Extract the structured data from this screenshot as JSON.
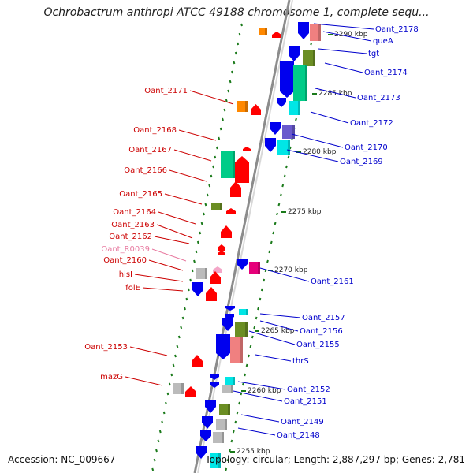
{
  "header": {
    "title": "Ochrobactrum anthropi ATCC 49188 chromosome 1, complete sequ..."
  },
  "footer": {
    "accession": "Accession: NC_009667",
    "topology": "Topology: circular; Length: 2,887,297 bp; Genes: 2,781"
  },
  "colors": {
    "backbone": "#8c8c8c",
    "tick": "#1a7a1a",
    "forward_label": "#cc0000",
    "reverse_label": "#0000cc",
    "rna_label": "#e87aa0",
    "gene_red": "#ff0000",
    "gene_blue": "#0000ee",
    "gene_orange": "#ff8800",
    "gene_green": "#00cc88",
    "gene_cyan": "#00e6e6",
    "gene_pink": "#f08080",
    "gene_olive": "#6b8e23",
    "gene_grey": "#bbbbbb",
    "gene_magenta": "#e6007a",
    "gene_purple": "#6a5acd"
  },
  "kbp_markers": [
    "2290 kbp",
    "2285 kbp",
    "2280 kbp",
    "2275 kbp",
    "2270 kbp",
    "2265 kbp",
    "2260 kbp",
    "2255 kbp"
  ],
  "left_labels": [
    {
      "text": "Oant_2171",
      "type": "cds"
    },
    {
      "text": "Oant_2168",
      "type": "cds"
    },
    {
      "text": "Oant_2167",
      "type": "cds"
    },
    {
      "text": "Oant_2166",
      "type": "cds"
    },
    {
      "text": "Oant_2165",
      "type": "cds"
    },
    {
      "text": "Oant_2164",
      "type": "cds"
    },
    {
      "text": "Oant_2163",
      "type": "cds"
    },
    {
      "text": "Oant_2162",
      "type": "cds"
    },
    {
      "text": "Oant_R0039",
      "type": "rna"
    },
    {
      "text": "Oant_2160",
      "type": "cds"
    },
    {
      "text": "hisI",
      "type": "cds"
    },
    {
      "text": "folE",
      "type": "cds"
    },
    {
      "text": "Oant_2153",
      "type": "cds"
    },
    {
      "text": "mazG",
      "type": "cds"
    }
  ],
  "right_labels": [
    {
      "text": "Oant_2178"
    },
    {
      "text": "queA"
    },
    {
      "text": "tgt"
    },
    {
      "text": "Oant_2174"
    },
    {
      "text": "Oant_2173"
    },
    {
      "text": "Oant_2172"
    },
    {
      "text": "Oant_2170"
    },
    {
      "text": "Oant_2169"
    },
    {
      "text": "Oant_2161"
    },
    {
      "text": "Oant_2157"
    },
    {
      "text": "Oant_2156"
    },
    {
      "text": "Oant_2155"
    },
    {
      "text": "thrS"
    },
    {
      "text": "Oant_2152"
    },
    {
      "text": "Oant_2151"
    },
    {
      "text": "Oant_2149"
    },
    {
      "text": "Oant_2148"
    }
  ]
}
